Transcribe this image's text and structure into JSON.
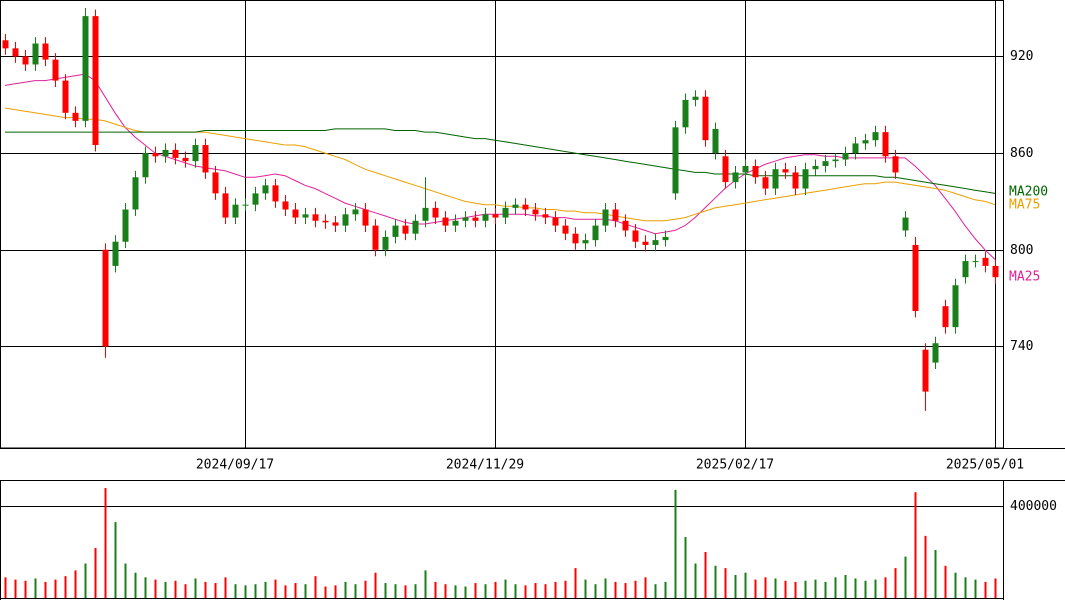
{
  "chart_data": [
    {
      "type": "candlestick",
      "categories": [
        null,
        null,
        null,
        null,
        null,
        null,
        null,
        null,
        null,
        null,
        null,
        null,
        null,
        null,
        null,
        null,
        null,
        null,
        null,
        null,
        null,
        null,
        null,
        null,
        "2024/09/17",
        null,
        null,
        null,
        null,
        null,
        null,
        null,
        null,
        null,
        null,
        null,
        null,
        null,
        null,
        null,
        null,
        null,
        null,
        null,
        null,
        null,
        null,
        null,
        null,
        "2024/11/29",
        null,
        null,
        null,
        null,
        null,
        null,
        null,
        null,
        null,
        null,
        null,
        null,
        null,
        null,
        null,
        null,
        null,
        null,
        null,
        null,
        null,
        null,
        null,
        null,
        "2025/02/17",
        null,
        null,
        null,
        null,
        null,
        null,
        null,
        null,
        null,
        null,
        null,
        null,
        null,
        null,
        null,
        null,
        null,
        null,
        null,
        null,
        null,
        null,
        null,
        null,
        "2025/05/01"
      ],
      "open": [
        930,
        925,
        920,
        915,
        928,
        918,
        905,
        885,
        880,
        945,
        800,
        790,
        805,
        825,
        845,
        860,
        858,
        862,
        857,
        855,
        865,
        848,
        835,
        820,
        828,
        828,
        835,
        840,
        830,
        825,
        820,
        822,
        818,
        817,
        815,
        822,
        825,
        815,
        800,
        808,
        815,
        810,
        818,
        826,
        820,
        815,
        818,
        820,
        818,
        822,
        820,
        826,
        828,
        825,
        822,
        820,
        815,
        810,
        804,
        806,
        815,
        825,
        818,
        812,
        805,
        803,
        806,
        835,
        876,
        893,
        895,
        860,
        858,
        842,
        848,
        852,
        845,
        838,
        850,
        848,
        838,
        850,
        852,
        855,
        856,
        860,
        866,
        868,
        873,
        858,
        812,
        803,
        738,
        730,
        765,
        752,
        783,
        793,
        795,
        790
      ],
      "high": [
        934,
        929,
        924,
        932,
        932,
        922,
        909,
        889,
        950,
        949,
        804,
        809,
        829,
        849,
        864,
        864,
        866,
        866,
        861,
        869,
        869,
        852,
        839,
        832,
        832,
        839,
        844,
        844,
        834,
        829,
        826,
        826,
        822,
        821,
        826,
        829,
        829,
        819,
        812,
        819,
        819,
        822,
        845,
        830,
        824,
        822,
        824,
        824,
        826,
        826,
        830,
        832,
        832,
        829,
        826,
        824,
        819,
        814,
        810,
        819,
        829,
        829,
        822,
        816,
        809,
        810,
        812,
        880,
        897,
        899,
        899,
        879,
        862,
        852,
        856,
        856,
        849,
        854,
        854,
        852,
        854,
        856,
        859,
        860,
        864,
        870,
        872,
        877,
        877,
        862,
        824,
        808,
        742,
        746,
        769,
        782,
        797,
        797,
        799,
        794
      ],
      "low": [
        921,
        916,
        911,
        911,
        914,
        901,
        881,
        876,
        876,
        861,
        733,
        786,
        801,
        821,
        841,
        854,
        854,
        853,
        851,
        851,
        844,
        831,
        816,
        816,
        824,
        824,
        831,
        826,
        821,
        816,
        816,
        814,
        813,
        811,
        811,
        818,
        811,
        796,
        796,
        804,
        806,
        806,
        814,
        816,
        811,
        811,
        814,
        814,
        814,
        816,
        816,
        822,
        821,
        818,
        816,
        811,
        806,
        800,
        800,
        802,
        811,
        814,
        808,
        801,
        799,
        799,
        802,
        831,
        872,
        889,
        864,
        856,
        838,
        838,
        844,
        841,
        834,
        834,
        844,
        834,
        834,
        846,
        848,
        851,
        852,
        856,
        862,
        864,
        854,
        844,
        808,
        758,
        700,
        726,
        748,
        748,
        779,
        789,
        786,
        779
      ],
      "close": [
        925,
        920,
        915,
        928,
        918,
        905,
        885,
        880,
        945,
        865,
        740,
        805,
        825,
        845,
        860,
        858,
        862,
        857,
        855,
        865,
        848,
        835,
        820,
        828,
        828,
        835,
        840,
        830,
        825,
        820,
        822,
        818,
        817,
        815,
        822,
        825,
        815,
        800,
        808,
        815,
        810,
        818,
        826,
        820,
        815,
        818,
        820,
        818,
        822,
        820,
        826,
        828,
        825,
        822,
        820,
        815,
        810,
        804,
        806,
        815,
        825,
        818,
        812,
        805,
        803,
        806,
        808,
        876,
        893,
        895,
        868,
        875,
        842,
        848,
        852,
        845,
        838,
        850,
        848,
        838,
        850,
        852,
        855,
        856,
        860,
        866,
        868,
        873,
        858,
        848,
        820,
        762,
        712,
        742,
        752,
        778,
        793,
        793,
        790,
        783
      ],
      "up_color": "#1a7f1a",
      "down_color": "#ff0000",
      "series": [
        {
          "name": "MA25",
          "color": "#e0209a",
          "values": [
            902,
            903,
            904,
            905,
            905,
            906,
            907,
            908,
            909,
            905,
            895,
            885,
            876,
            870,
            865,
            860,
            858,
            856,
            854,
            852,
            851,
            850,
            849,
            847,
            845,
            845,
            846,
            847,
            846,
            843,
            840,
            838,
            835,
            832,
            829,
            827,
            825,
            823,
            821,
            819,
            817,
            816,
            816,
            817,
            818,
            819,
            820,
            821,
            822,
            822,
            822,
            822,
            822,
            821,
            821,
            820,
            820,
            819,
            819,
            819,
            819,
            818,
            816,
            814,
            812,
            810,
            811,
            812,
            815,
            820,
            826,
            832,
            838,
            843,
            847,
            850,
            853,
            855,
            857,
            858,
            859,
            859,
            858,
            858,
            857,
            857,
            857,
            857,
            857,
            857,
            857,
            852,
            846,
            840,
            832,
            824,
            815,
            807,
            800,
            794
          ]
        },
        {
          "name": "MA75",
          "color": "#e8a000",
          "values": [
            888,
            887,
            886,
            885,
            884,
            883,
            882,
            882,
            881,
            881,
            880,
            878,
            876,
            874,
            873,
            873,
            873,
            873,
            873,
            873,
            873,
            872,
            871,
            870,
            869,
            868,
            867,
            866,
            865,
            865,
            864,
            862,
            860,
            858,
            856,
            853,
            850,
            848,
            846,
            844,
            842,
            840,
            838,
            836,
            834,
            832,
            830,
            829,
            828,
            828,
            827,
            827,
            826,
            826,
            825,
            825,
            824,
            824,
            823,
            823,
            822,
            821,
            820,
            819,
            818,
            818,
            818,
            819,
            820,
            822,
            824,
            826,
            827,
            828,
            829,
            830,
            831,
            832,
            833,
            834,
            835,
            836,
            837,
            838,
            839,
            840,
            841,
            841,
            842,
            842,
            841,
            840,
            839,
            838,
            837,
            835,
            833,
            831,
            830,
            828
          ]
        },
        {
          "name": "MA200",
          "color": "#006400",
          "values": [
            873,
            873,
            873,
            873,
            873,
            873,
            873,
            873,
            873,
            873,
            873,
            873,
            873,
            873,
            873,
            873,
            873,
            873,
            873,
            873,
            874,
            874,
            874,
            874,
            874,
            874,
            874,
            874,
            874,
            874,
            874,
            874,
            874,
            875,
            875,
            875,
            875,
            875,
            875,
            874,
            874,
            874,
            873,
            873,
            872,
            871,
            870,
            869,
            869,
            868,
            867,
            866,
            865,
            864,
            863,
            862,
            861,
            860,
            859,
            858,
            857,
            856,
            855,
            854,
            853,
            852,
            851,
            850,
            849,
            848,
            848,
            847,
            847,
            847,
            847,
            846,
            846,
            846,
            846,
            846,
            846,
            846,
            846,
            846,
            846,
            846,
            846,
            846,
            845,
            845,
            844,
            843,
            842,
            841,
            840,
            839,
            838,
            837,
            836,
            835
          ]
        }
      ],
      "ylim": [
        677,
        955
      ],
      "yticks": [
        740,
        800,
        860,
        920
      ],
      "grid": true
    },
    {
      "type": "bar",
      "values": [
        90000,
        80000,
        75000,
        85000,
        70000,
        80000,
        95000,
        120000,
        150000,
        217000,
        478000,
        330000,
        150000,
        110000,
        90000,
        80000,
        70000,
        75000,
        60000,
        85000,
        70000,
        65000,
        90000,
        60000,
        55000,
        60000,
        70000,
        80000,
        55000,
        65000,
        60000,
        95000,
        50000,
        55000,
        70000,
        60000,
        75000,
        110000,
        65000,
        60000,
        55000,
        60000,
        120000,
        70000,
        60000,
        55000,
        50000,
        65000,
        60000,
        70000,
        80000,
        60000,
        55000,
        65000,
        60000,
        70000,
        75000,
        130000,
        80000,
        60000,
        85000,
        70000,
        65000,
        75000,
        90000,
        60000,
        70000,
        470000,
        265000,
        150000,
        200000,
        140000,
        130000,
        100000,
        110000,
        80000,
        90000,
        85000,
        75000,
        70000,
        75000,
        80000,
        70000,
        90000,
        100000,
        85000,
        75000,
        80000,
        90000,
        130000,
        180000,
        460000,
        270000,
        209000,
        140000,
        110000,
        90000,
        80000,
        70000,
        85000
      ],
      "ylim": [
        0,
        513000
      ],
      "yticks": [
        400000
      ],
      "grid": true
    }
  ]
}
